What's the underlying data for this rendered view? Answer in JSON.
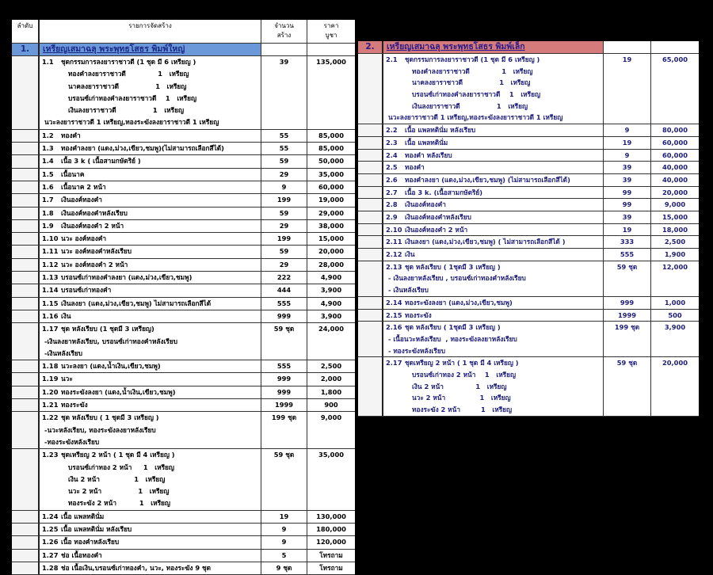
{
  "header": {
    "no": "ลำดับ",
    "item": "รายการจัดสร้าง",
    "qty": [
      "จำนวน",
      "สร้าง"
    ],
    "price": [
      "ราคา",
      "บูชา"
    ]
  },
  "left": {
    "section": {
      "num": "1.",
      "title": "เหรียญเสมาฉลุ พระพุทธโสธร พิมพ์ใหญ่",
      "color": "#6b98d8"
    },
    "rows": [
      {
        "num": "1.1",
        "lines": [
          "ชุดกรรมการลงยาราชาวดี      (1 ชุด มี 6 เหรียญ )",
          "ทองคำลงยาราชาวดี              1   เหรียญ",
          "นาคลงยาราชาวดี                1   เหรียญ",
          "บรอนซ์เก่าทองคำลงยาราชาวดี    1   เหรียญ",
          "เงินลงยาราชาวดี                1   เหรียญ",
          "นวะลงยาราชาวดี 1 เหรียญ,ทองระฆังลงยาราชาวดี 1 เหรียญ"
        ],
        "qty": "39",
        "price": "135,000"
      },
      {
        "num": "1.2",
        "lines": [
          "ทองคำ"
        ],
        "qty": "55",
        "price": "85,000"
      },
      {
        "num": "1.3",
        "lines": [
          "ทองคำลงยา (แดง,ม่วง,เขียว,ชมพู)(ไม่สามารถเลือกสีได้)"
        ],
        "qty": "55",
        "price": "85,000"
      },
      {
        "num": "1.4",
        "lines": [
          "เนื้อ 3 k ( เนื้อสามกษัตริย์ )"
        ],
        "qty": "59",
        "price": "50,000"
      },
      {
        "num": "1.5",
        "lines": [
          "เนื้อนาค"
        ],
        "qty": "29",
        "price": "35,000"
      },
      {
        "num": "1.6",
        "lines": [
          "เนื้อนาค 2 หน้า"
        ],
        "qty": "9",
        "price": "60,000"
      },
      {
        "num": "1.7",
        "lines": [
          "เงินองค์ทองคำ"
        ],
        "qty": "199",
        "price": "19,000"
      },
      {
        "num": "1.8",
        "lines": [
          "เงินองค์ทองคำหลังเรียบ"
        ],
        "qty": "59",
        "price": "29,000"
      },
      {
        "num": "1.9",
        "lines": [
          "เงินองค์ทองคำ 2 หน้า"
        ],
        "qty": "29",
        "price": "38,000"
      },
      {
        "num": "1.10",
        "lines": [
          "นวะ องค์ทองคำ"
        ],
        "qty": "199",
        "price": "15,000"
      },
      {
        "num": "1.11",
        "lines": [
          "นวะ องค์ทองคำหลังเรียบ"
        ],
        "qty": "59",
        "price": "20,000"
      },
      {
        "num": "1.12",
        "lines": [
          "นวะ องค์ทองคำ 2 หน้า"
        ],
        "qty": "29",
        "price": "28,000"
      },
      {
        "num": "1.13",
        "lines": [
          "บรอนซ์เก่าทองคำลงยา  (แดง,ม่วง,เขียว,ชมพู)"
        ],
        "qty": "222",
        "price": "4,900"
      },
      {
        "num": "1.14",
        "lines": [
          "บรอนซ์เก่าทองคำ"
        ],
        "qty": "444",
        "price": "3,900"
      },
      {
        "num": "1.15",
        "lines": [
          "เงินลงยา   (แดง,ม่วง,เขียว,ชมพู)    ไม่สามารถเลือกสีได้"
        ],
        "qty": "555",
        "price": "4,900"
      },
      {
        "num": "1.16",
        "lines": [
          "เงิน"
        ],
        "qty": "999",
        "price": "3,900"
      },
      {
        "num": "1.17",
        "lines": [
          "ชุด หลังเรียบ (1 ชุดมี 3 เหรียญ)",
          "-เงินลงยาหลังเรียบ, บรอนซ์เก่าทองคำหลังเรียบ",
          "-เงินหลังเรียบ"
        ],
        "qty": "59 ชุด",
        "price": "24,000"
      },
      {
        "num": "1.18",
        "lines": [
          "นวะลงยา  (แดง,น้ำเงิน,เขียว,ชมพู)"
        ],
        "qty": "555",
        "price": "2,500"
      },
      {
        "num": "1.19",
        "lines": [
          "นวะ"
        ],
        "qty": "999",
        "price": "2,000"
      },
      {
        "num": "1.20",
        "lines": [
          "ทองระฆังลงยา (แดง,น้ำเงิน,เขียว,ชมพู)"
        ],
        "qty": "999",
        "price": "1,800"
      },
      {
        "num": "1.21",
        "lines": [
          "ทองระฆัง"
        ],
        "qty": "1999",
        "price": "900"
      },
      {
        "num": "1.22",
        "lines": [
          "ชุด หลังเรียบ ( 1 ชุดมี 3 เหรียญ )",
          "-นวะหลังเรียบ, ทองระฆังลงยาหลังเรียบ",
          "-ทองระฆังหลังเรียบ"
        ],
        "qty": "199 ชุด",
        "price": "9,000"
      },
      {
        "num": "1.23",
        "lines": [
          "ชุดเหรียญ 2 หน้า   ( 1 ชุด มี 4 เหรียญ )",
          "บรอนซ์เก่าทอง 2 หน้า     1   เหรียญ",
          "เงิน 2 หน้า               1   เหรียญ",
          "นวะ 2 หน้า                1   เหรียญ",
          "ทองระฆัง 2 หน้า          1   เหรียญ"
        ],
        "qty": "59 ชุด",
        "price": "35,000"
      },
      {
        "num": "1.24",
        "lines": [
          "เนื้อ แพลทตินั่ม"
        ],
        "qty": "19",
        "price": "130,000"
      },
      {
        "num": "1.25",
        "lines": [
          "เนื้อ แพลทตินั่ม หลังเรียบ"
        ],
        "qty": "9",
        "price": "180,000"
      },
      {
        "num": "1.26",
        "lines": [
          "เนื้อ ทองคำหลังเรียบ"
        ],
        "qty": "9",
        "price": "120,000"
      },
      {
        "num": "1.27",
        "lines": [
          "ช่อ เนื้อทองคำ"
        ],
        "qty": "5",
        "price": "โทรถาม"
      },
      {
        "num": "1.28",
        "lines": [
          "ช่อ เนื้อเงิน,บรอนซ์เก่าทองคำ, นวะ, ทองระฆัง 9 ชุด"
        ],
        "qty": "9 ชุด",
        "price": "โทรถาม"
      }
    ]
  },
  "right": {
    "section": {
      "num": "2.",
      "title": "เหรียญเสมาฉลุ พระพุทธโสธร พิมพ์เล็ก",
      "color": "#d57b7b"
    },
    "rows": [
      {
        "num": "2.1",
        "lines": [
          "ชุดกรรมการลงยาราชาวดี      (1 ชุด มี 6 เหรียญ )",
          "ทองคำลงยาราชาวดี              1   เหรียญ",
          "นาคลงยาราชาวดี                1   เหรียญ",
          "บรอนซ์เก่าทองคำลงยาราชาวดี    1   เหรียญ",
          "เงินลงยาราชาวดี                1   เหรียญ",
          "นวะลงยาราชาวดี 1 เหรียญ,ทองระฆังลงยาราชาวดี 1 เหรียญ"
        ],
        "qty": "19",
        "price": "65,000"
      },
      {
        "num": "2.2",
        "lines": [
          "เนื้อ แพลทตินั่ม  หลังเรียบ"
        ],
        "qty": "9",
        "price": "80,000"
      },
      {
        "num": "2.3",
        "lines": [
          "เนื้อ แพลทตินั่ม"
        ],
        "qty": "19",
        "price": "60,000"
      },
      {
        "num": "2.4",
        "lines": [
          "ทองคำ หลังเรียบ"
        ],
        "qty": "9",
        "price": "60,000"
      },
      {
        "num": "2.5",
        "lines": [
          "ทองคำ"
        ],
        "qty": "39",
        "price": "40,000"
      },
      {
        "num": "2.6",
        "lines": [
          "ทองคำลงยา (แดง,ม่วง,เขียว,ชมพู) (ไม่สามารถเลือกสีได้)"
        ],
        "qty": "39",
        "price": "40,000"
      },
      {
        "num": "2.7",
        "lines": [
          "เนื้อ 3 k.   (เนื้อสามกษัตริย์)"
        ],
        "qty": "99",
        "price": "20,000"
      },
      {
        "num": "2.8",
        "lines": [
          "เงินองค์ทองคำ"
        ],
        "qty": "99",
        "price": "9,000"
      },
      {
        "num": "2.9",
        "lines": [
          "เงินองค์ทองคำหลังเรียบ"
        ],
        "qty": "39",
        "price": "15,000"
      },
      {
        "num": "2.10",
        "lines": [
          "เงินองค์ทองคำ 2 หน้า"
        ],
        "qty": "19",
        "price": "18,000"
      },
      {
        "num": "2.11",
        "lines": [
          "เงินลงยา  (แดง,ม่วง,เขียว,ชมพู) ( ไม่สามารถเลือกสีได้ )"
        ],
        "qty": "333",
        "price": "2,500"
      },
      {
        "num": "2.12",
        "lines": [
          "เงิน"
        ],
        "qty": "555",
        "price": "1,900"
      },
      {
        "num": "2.13",
        "lines": [
          "ชุด หลังเรียบ              ( 1ชุดมี 3 เหรียญ )",
          "- เงินลงยาหลังเรียบ , บรอนซ์เก่าทองคำหลังเรียบ",
          "- เงินหลังเรียบ"
        ],
        "qty": "59 ชุด",
        "price": "12,000"
      },
      {
        "num": "2.14",
        "lines": [
          "ทองระฆังลงยา (แดง,ม่วง,เขียว,ชมพู)"
        ],
        "qty": "999",
        "price": "1,000"
      },
      {
        "num": "2.15",
        "lines": [
          "ทองระฆัง"
        ],
        "qty": "1999",
        "price": "500"
      },
      {
        "num": "2.16",
        "lines": [
          "ชุด หลังเรียบ              ( 1ชุดมี 3 เหรียญ )",
          "- เนื้อนวะหลังเรียบ  , ทองระฆังลงยาหลังเรียบ",
          "- ทองระฆังหลังเรียบ"
        ],
        "qty": "199 ชุด",
        "price": "3,900"
      },
      {
        "num": "2.17",
        "lines": [
          "ชุดเหรียญ 2 หน้า   ( 1 ชุด มี 4 เหรียญ )",
          "บรอนซ์เก่าทอง 2 หน้า    1   เหรียญ",
          "เงิน 2 หน้า              1   เหรียญ",
          "นวะ 2 หน้า               1   เหรียญ",
          "ทองระฆัง 2 หน้า         1   เหรียญ"
        ],
        "qty": "59 ชุด",
        "price": "20,000"
      }
    ]
  }
}
